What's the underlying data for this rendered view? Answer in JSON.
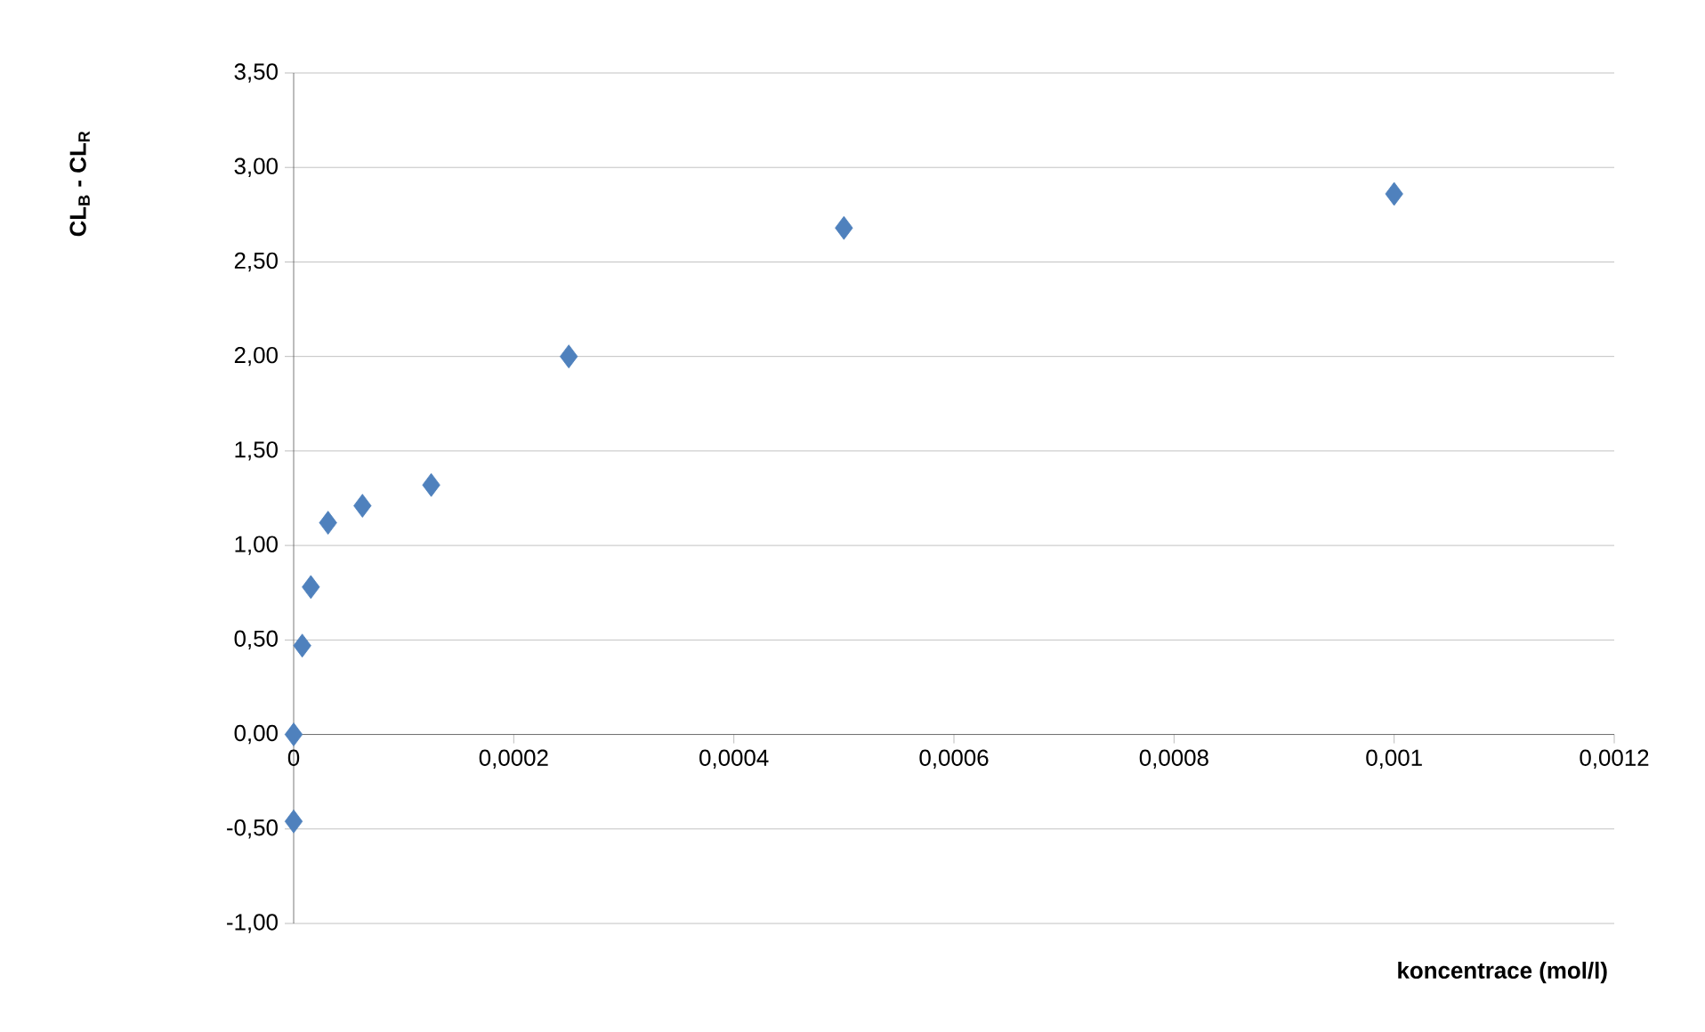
{
  "chart_data": {
    "type": "scatter",
    "xlabel": "koncentrace (mol/l)",
    "ylabel": "**CL$_{B}$ - CL$_{R}$**",
    "x": [
      0.001,
      0.0005,
      0.00025,
      0.000125,
      6.25e-05,
      3.125e-05,
      1.56e-05,
      7.8e-06,
      0,
      0
    ],
    "series": [
      {
        "color": "#4f81bd",
        "values": [
          2.86,
          2.68,
          2.0,
          1.32,
          1.21,
          1.12,
          0.78,
          0.47,
          0.0,
          -0.46
        ]
      }
    ],
    "marker": "diamond",
    "grid": "y",
    "xlim": [
      0,
      0.0012
    ],
    "ylim": [
      -1.0,
      3.5
    ],
    "xticks": [
      0,
      {
        "value": 0.0002,
        "label": "0,0002"
      },
      {
        "value": 0.0004,
        "label": "0,0004"
      },
      {
        "value": 0.0006,
        "label": "0,0006"
      },
      {
        "value": 0.0008,
        "label": "0,0008"
      },
      {
        "value": 0.001,
        "label": "0,001"
      },
      {
        "value": 0.0012,
        "label": "0,0012"
      }
    ],
    "yticks": [
      {
        "value": -1.0,
        "label": "-1,00"
      },
      {
        "value": -0.5,
        "label": "-0,50"
      },
      {
        "value": 0,
        "label": "0,00"
      },
      {
        "value": 0.5,
        "label": "0,50"
      },
      {
        "value": 1.0,
        "label": "1,00"
      },
      {
        "value": 1.5,
        "label": "1,50"
      },
      {
        "value": 2.0,
        "label": "2,00"
      },
      {
        "value": 2.5,
        "label": "2,50"
      },
      {
        "value": 3.0,
        "label": "3,00"
      },
      {
        "value": 3.5,
        "label": "3,50"
      }
    ]
  }
}
